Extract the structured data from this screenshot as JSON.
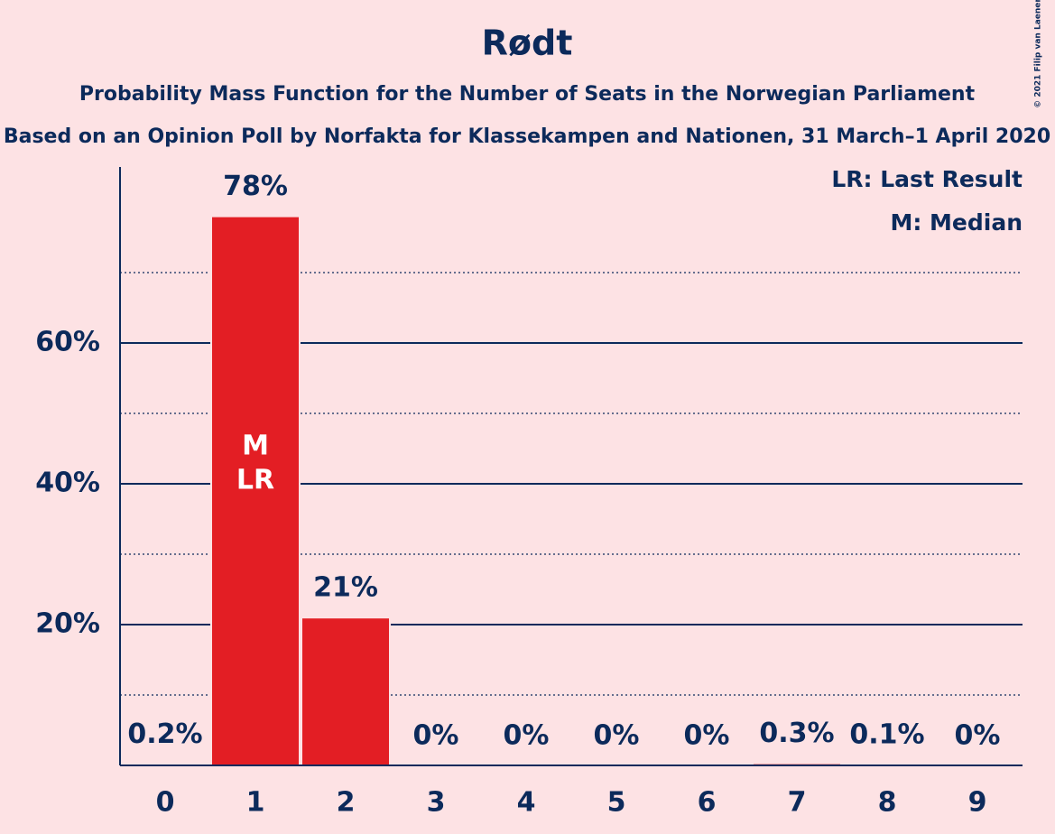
{
  "chart_data": {
    "type": "bar",
    "title": "Rødt",
    "subtitle": "Probability Mass Function for the Number of Seats in the Norwegian Parliament",
    "subtitle2": "Based on an Opinion Poll by Norfakta for Klassekampen and Nationen, 31 March–1 April 2020",
    "copyright": "© 2021 Filip van Laenen",
    "categories": [
      "0",
      "1",
      "2",
      "3",
      "4",
      "5",
      "6",
      "7",
      "8",
      "9"
    ],
    "values": [
      0.2,
      78,
      21,
      0,
      0,
      0,
      0,
      0.3,
      0.1,
      0
    ],
    "value_labels": [
      "0.2%",
      "78%",
      "21%",
      "0%",
      "0%",
      "0%",
      "0%",
      "0.3%",
      "0.1%",
      "0%"
    ],
    "color": "#e31e24",
    "ylim": [
      0,
      85
    ],
    "yticks": [
      {
        "value": 20,
        "label": "20%"
      },
      {
        "value": 40,
        "label": "40%"
      },
      {
        "value": 60,
        "label": "60%"
      }
    ],
    "minor_yticks": [
      10,
      30,
      50,
      70
    ],
    "grid": true,
    "legend": [
      "LR: Last Result",
      "M: Median"
    ],
    "annotations": [
      {
        "category": "1",
        "text": "M"
      },
      {
        "category": "1",
        "text": "LR"
      }
    ]
  }
}
